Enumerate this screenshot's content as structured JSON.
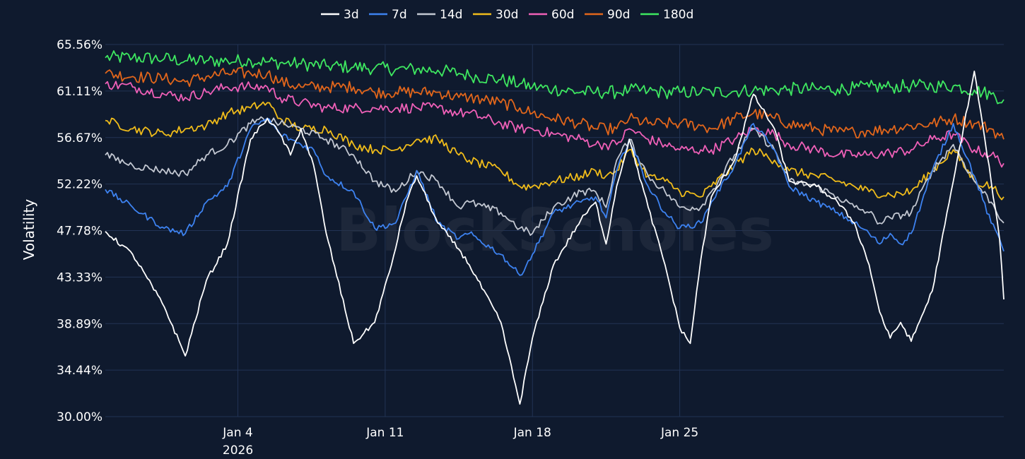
{
  "chart_data": {
    "type": "line",
    "title": "",
    "watermark": "BlockScholes",
    "xlabel": "",
    "ylabel": "Volatility",
    "ylim": [
      30.0,
      65.56
    ],
    "yticks": [
      "30.00%",
      "34.44%",
      "38.89%",
      "43.33%",
      "47.78%",
      "52.22%",
      "56.67%",
      "61.11%",
      "65.56%"
    ],
    "xrange_days": [
      -2.3,
      40.4
    ],
    "xticks": [
      {
        "day": 4,
        "label": "Jan 4",
        "sublabel": "2026"
      },
      {
        "day": 11,
        "label": "Jan 11",
        "sublabel": ""
      },
      {
        "day": 18,
        "label": "Jan 18",
        "sublabel": ""
      },
      {
        "day": 25,
        "label": "Jan 25",
        "sublabel": ""
      }
    ],
    "grid": true,
    "legend_position": "top-center",
    "background": "#0f1a2e",
    "grid_color": "#223354",
    "series": [
      {
        "name": "3d",
        "color": "#ffffff",
        "x": [
          -2.3,
          -1,
          0.5,
          1.5,
          2.5,
          3.5,
          4.6,
          5.4,
          6,
          6.5,
          7,
          7.6,
          8.2,
          9.5,
          10.5,
          11.3,
          12,
          12.5,
          13.5,
          14.5,
          15,
          16.5,
          17.4,
          18,
          19,
          20.3,
          21,
          21.5,
          22,
          22.6,
          23.5,
          24.3,
          25,
          25.5,
          26,
          26.5,
          27.6,
          28.5,
          29.5,
          30.2,
          31.5,
          32.5,
          33.3,
          34,
          34.5,
          35,
          35.5,
          36,
          37,
          38,
          39,
          39.8,
          40.2,
          40.4
        ],
        "values": [
          47.7,
          45.5,
          40.5,
          35.8,
          43,
          46.5,
          56.5,
          58.5,
          57,
          55,
          57.5,
          54,
          47.5,
          37,
          39,
          44.5,
          50.5,
          53,
          48.5,
          46,
          44.5,
          39,
          31.2,
          37.5,
          44.5,
          48.8,
          50.5,
          46.5,
          52,
          56.5,
          50,
          44.5,
          38.5,
          37,
          45,
          51,
          54.5,
          60.8,
          57.5,
          52.5,
          52,
          50.5,
          48.5,
          44.5,
          40,
          37.5,
          39,
          37.2,
          42,
          52.5,
          63,
          52.5,
          47,
          41.2
        ]
      },
      {
        "name": "7d",
        "color": "#3d82f0",
        "x": [
          -2.3,
          -1,
          0.5,
          1.5,
          2.5,
          3.5,
          4.6,
          5.4,
          6,
          7,
          7.6,
          8.2,
          9.5,
          10.5,
          11.5,
          12.5,
          13.5,
          14.5,
          15,
          16.5,
          17.4,
          18,
          19,
          20.3,
          21,
          21.5,
          22,
          22.6,
          23.5,
          24.3,
          25,
          26,
          26.5,
          27.6,
          28.5,
          29.5,
          30.2,
          31.5,
          32.5,
          33.3,
          34,
          34.5,
          35,
          35.5,
          36,
          37,
          38,
          39,
          39.8,
          40.2,
          40.4
        ],
        "values": [
          51.7,
          50,
          48,
          47.5,
          50.5,
          52,
          57.5,
          58.5,
          57,
          56,
          55.5,
          53,
          51.5,
          48,
          48.5,
          53.5,
          48.5,
          47,
          47.5,
          45.5,
          43.5,
          45.5,
          49.5,
          50.5,
          51,
          49,
          53.5,
          56.5,
          52,
          49.5,
          48,
          48.5,
          50.5,
          54,
          58,
          55.5,
          52,
          50.5,
          49.5,
          48.5,
          47.5,
          46.5,
          47.5,
          46.5,
          47.5,
          53.5,
          58,
          53,
          48.5,
          47,
          45.8
        ]
      },
      {
        "name": "14d",
        "color": "#c3c8d2",
        "x": [
          -2.3,
          -1,
          0.5,
          1.5,
          2.5,
          3.5,
          4.6,
          5.4,
          6,
          7,
          8.2,
          9.5,
          10.5,
          11.5,
          12.5,
          13.5,
          14.5,
          15,
          16.5,
          17.4,
          18,
          19,
          20.3,
          21,
          21.5,
          22,
          22.6,
          23.5,
          24.3,
          25,
          26,
          26.5,
          27.6,
          28.5,
          29.5,
          30.2,
          31.5,
          32.5,
          33.3,
          34,
          34.5,
          35,
          36,
          37,
          38,
          39,
          39.8,
          40.4
        ],
        "values": [
          55,
          54,
          53.5,
          53.2,
          55,
          56,
          58,
          58.5,
          58,
          57.5,
          56.5,
          55,
          52.5,
          51.5,
          53.5,
          52.5,
          50,
          50.5,
          49.5,
          48,
          47.5,
          50,
          51.5,
          51.5,
          50,
          54.5,
          56.5,
          53,
          51.5,
          50,
          50,
          51.5,
          55,
          57.5,
          55.5,
          52.5,
          52,
          51,
          50,
          49.5,
          48.5,
          49,
          49.5,
          53.5,
          56,
          52.5,
          50.5,
          48.5
        ]
      },
      {
        "name": "30d",
        "color": "#f0bc1a",
        "x": [
          -2.3,
          -1,
          0.5,
          1.5,
          2.5,
          3.5,
          4.6,
          5.4,
          6,
          7,
          8.2,
          9.5,
          10.5,
          11.5,
          12.5,
          13.5,
          14.5,
          15,
          16.5,
          17.4,
          18,
          19,
          20.3,
          21,
          21.5,
          22,
          22.6,
          23.5,
          24.3,
          25,
          26,
          26.5,
          27.6,
          28.5,
          29.5,
          30.2,
          31.5,
          32.5,
          33.3,
          34,
          35,
          36,
          37,
          38,
          39,
          39.8,
          40.4
        ],
        "values": [
          58.3,
          57.5,
          57,
          57.5,
          57.8,
          59,
          59.5,
          60,
          58.5,
          57.5,
          57.5,
          56,
          55.5,
          55.5,
          56.5,
          56.5,
          55,
          54.5,
          53.5,
          52,
          52,
          52.5,
          53,
          53.5,
          53,
          53.5,
          55.5,
          53,
          52.5,
          51.5,
          51,
          52,
          54,
          55.5,
          54.5,
          53.5,
          53,
          52.5,
          52,
          51.5,
          51.2,
          51.5,
          53.5,
          55.5,
          52.5,
          52,
          51
        ]
      },
      {
        "name": "60d",
        "color": "#f060b8",
        "x": [
          -2.3,
          -1,
          0.5,
          1.5,
          2.5,
          3.5,
          4.6,
          5.4,
          6,
          7,
          8.2,
          9.5,
          10.5,
          11.5,
          12.5,
          13.5,
          14.5,
          15,
          16.5,
          17.4,
          18,
          19,
          20.3,
          21,
          21.5,
          22,
          22.6,
          23.5,
          24.3,
          25,
          26,
          26.5,
          27.6,
          28.5,
          29.5,
          30.2,
          31.5,
          32.5,
          33.3,
          34,
          35,
          36,
          37,
          38,
          39,
          39.8,
          40.4
        ],
        "values": [
          61.8,
          61.5,
          60.8,
          60.5,
          61,
          61.5,
          61.5,
          61.5,
          60.5,
          60,
          59.5,
          59.5,
          59.5,
          59.5,
          59.5,
          59.5,
          59,
          59,
          58,
          57.5,
          57.5,
          57,
          56.5,
          56,
          56,
          56,
          57.5,
          56.5,
          56,
          55.5,
          55.5,
          55.5,
          56.5,
          57.5,
          57,
          56,
          55.5,
          55,
          55,
          55,
          55.2,
          55.5,
          56.5,
          57,
          55.5,
          55,
          54.2
        ]
      },
      {
        "name": "90d",
        "color": "#e2661b",
        "x": [
          -2.3,
          -1,
          0.5,
          1.5,
          2.5,
          3.5,
          4.6,
          5.4,
          6,
          7,
          8.2,
          9.5,
          10.5,
          11.5,
          12.5,
          13.5,
          14.5,
          15,
          16.5,
          17.4,
          18,
          19,
          20.3,
          21,
          21.5,
          22,
          22.6,
          23.5,
          24.3,
          25,
          26,
          26.5,
          27.6,
          28.5,
          29.5,
          30.2,
          31.5,
          32.5,
          33.3,
          34,
          35,
          36,
          37,
          38,
          39,
          39.8,
          40.4
        ],
        "values": [
          62.8,
          62.5,
          62.3,
          62,
          62.5,
          62.8,
          62.8,
          62.8,
          62,
          61.5,
          61.5,
          61.5,
          61,
          61,
          61,
          61,
          60.5,
          60.5,
          60,
          59.5,
          59,
          58.5,
          58,
          57.5,
          57.5,
          57.5,
          58.5,
          58,
          58,
          58,
          57.8,
          57.5,
          58.5,
          59,
          58.5,
          58,
          57.5,
          57.2,
          57.2,
          57.3,
          57.5,
          57.8,
          58,
          58.5,
          58,
          57.5,
          56.5
        ]
      },
      {
        "name": "180d",
        "color": "#3ee860",
        "x": [
          -2.3,
          -1,
          0.5,
          1.5,
          2.5,
          3.5,
          4.6,
          5.4,
          6,
          7,
          8.2,
          9.5,
          10.5,
          11.5,
          12.5,
          13.5,
          14.5,
          15,
          16.5,
          17.4,
          18,
          19,
          20.3,
          21,
          21.5,
          22,
          22.6,
          23.5,
          24.3,
          25,
          26,
          26.5,
          27.6,
          28.5,
          29.5,
          30.2,
          31.5,
          32.5,
          33.3,
          34,
          35,
          36,
          37,
          38,
          39,
          39.8,
          40.4
        ],
        "values": [
          64.3,
          64.3,
          64.2,
          64.0,
          64.0,
          64.0,
          64.0,
          63.9,
          63.8,
          63.7,
          63.5,
          63.4,
          63.3,
          63.2,
          63.2,
          63.1,
          62.8,
          62.6,
          62.2,
          61.8,
          61.5,
          61.3,
          61.0,
          61.0,
          61.0,
          61.0,
          61.2,
          61.1,
          61.0,
          61.0,
          61.0,
          61.0,
          61.1,
          61.2,
          61.2,
          61.3,
          61.3,
          61.3,
          61.4,
          61.5,
          61.5,
          61.6,
          61.6,
          61.6,
          61.2,
          60.8,
          60.3
        ]
      }
    ]
  }
}
